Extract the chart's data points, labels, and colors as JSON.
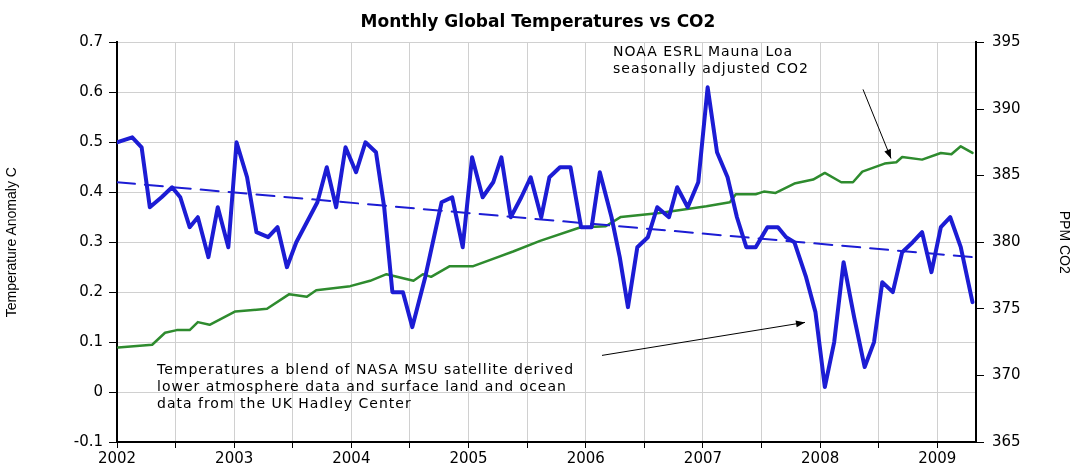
{
  "chart_data": {
    "type": "line",
    "title": "Monthly Global Temperatures vs CO2",
    "ylabel": "Temperature Anomaly C",
    "y2label": "PPM CO2",
    "xlim": [
      2002,
      2009.33
    ],
    "xticks": [
      2002,
      {
        "value": 2002.5,
        "label": null
      },
      2003,
      {
        "value": 2003.5,
        "label": null
      },
      2004,
      {
        "value": 2004.5,
        "label": null
      },
      2005,
      {
        "value": 2005.5,
        "label": null
      },
      2006,
      {
        "value": 2006.5,
        "label": null
      },
      2007,
      {
        "value": 2007.5,
        "label": null
      },
      2008,
      {
        "value": 2008.5,
        "label": null
      },
      2009
    ],
    "ylim": [
      -0.1,
      0.7
    ],
    "yticks": [
      -0.1,
      0,
      0.1,
      0.2,
      0.3,
      0.4,
      0.5,
      0.6,
      0.7
    ],
    "y2lim": [
      365,
      395
    ],
    "y2ticks": [
      365,
      370,
      375,
      380,
      385,
      390,
      395
    ],
    "grid": true,
    "marker": "none",
    "series": [
      {
        "color": "#1c1cd4",
        "x": [
          2002.0,
          2002.13,
          2002.21,
          2002.28,
          2002.38,
          2002.47,
          2002.54,
          2002.62,
          2002.69,
          2002.78,
          2002.86,
          2002.95,
          2003.02,
          2003.11,
          2003.19,
          2003.29,
          2003.37,
          2003.45,
          2003.53,
          2003.62,
          2003.71,
          2003.79,
          2003.87,
          2003.95,
          2004.04,
          2004.12,
          2004.21,
          2004.28,
          2004.35,
          2004.44,
          2004.52,
          2004.63,
          2004.77,
          2004.86,
          2004.95,
          2005.03,
          2005.12,
          2005.21,
          2005.28,
          2005.36,
          2005.45,
          2005.53,
          2005.62,
          2005.69,
          2005.78,
          2005.87,
          2005.96,
          2006.05,
          2006.12,
          2006.22,
          2006.29,
          2006.36,
          2006.44,
          2006.53,
          2006.61,
          2006.71,
          2006.78,
          2006.87,
          2006.96,
          2007.04,
          2007.12,
          2007.21,
          2007.29,
          2007.37,
          2007.45,
          2007.55,
          2007.64,
          2007.71,
          2007.78,
          2007.88,
          2007.96,
          2008.04,
          2008.12,
          2008.2,
          2008.29,
          2008.38,
          2008.46,
          2008.53,
          2008.62,
          2008.7,
          2008.79,
          2008.87,
          2008.95,
          2009.03,
          2009.11,
          2009.2,
          2009.3
        ],
        "values": [
          0.5,
          0.51,
          0.49,
          0.37,
          0.39,
          0.41,
          0.39,
          0.33,
          0.35,
          0.27,
          0.37,
          0.29,
          0.5,
          0.43,
          0.32,
          0.31,
          0.33,
          0.25,
          0.3,
          0.34,
          0.38,
          0.45,
          0.37,
          0.49,
          0.44,
          0.5,
          0.48,
          0.37,
          0.2,
          0.2,
          0.13,
          0.23,
          0.38,
          0.39,
          0.29,
          0.47,
          0.39,
          0.42,
          0.47,
          0.35,
          0.39,
          0.43,
          0.35,
          0.43,
          0.45,
          0.45,
          0.33,
          0.33,
          0.44,
          0.35,
          0.27,
          0.17,
          0.29,
          0.31,
          0.37,
          0.35,
          0.41,
          0.37,
          0.42,
          0.61,
          0.48,
          0.43,
          0.35,
          0.29,
          0.29,
          0.33,
          0.33,
          0.31,
          0.3,
          0.23,
          0.16,
          0.01,
          0.1,
          0.26,
          0.15,
          0.05,
          0.1,
          0.22,
          0.2,
          0.28,
          0.3,
          0.32,
          0.24,
          0.33,
          0.35,
          0.29,
          0.18
        ]
      },
      {
        "color": "#1c1cd4",
        "line_style": "dashed",
        "x": [
          2002.0,
          2009.3
        ],
        "values": [
          0.42,
          0.27
        ]
      },
      {
        "color": "#2e8b2e",
        "axis": "y2",
        "x": [
          2002.01,
          2002.3,
          2002.41,
          2002.51,
          2002.62,
          2002.69,
          2002.79,
          2003.01,
          2003.28,
          2003.47,
          2003.62,
          2003.7,
          2003.99,
          2004.16,
          2004.3,
          2004.53,
          2004.61,
          2004.68,
          2004.84,
          2005.04,
          2005.38,
          2005.61,
          2005.95,
          2006.17,
          2006.3,
          2006.63,
          2007.03,
          2007.23,
          2007.28,
          2007.45,
          2007.52,
          2007.62,
          2007.78,
          2007.94,
          2008.04,
          2008.18,
          2008.28,
          2008.36,
          2008.55,
          2008.65,
          2008.7,
          2008.87,
          2009.03,
          2009.12,
          2009.2,
          2009.3
        ],
        "values": [
          372.1,
          372.3,
          373.2,
          373.4,
          373.4,
          374.0,
          373.8,
          374.8,
          375.0,
          376.1,
          375.9,
          376.4,
          376.7,
          377.1,
          377.6,
          377.1,
          377.6,
          377.4,
          378.2,
          378.2,
          379.3,
          380.1,
          381.1,
          381.2,
          381.9,
          382.2,
          382.7,
          383.0,
          383.6,
          383.6,
          383.8,
          383.7,
          384.4,
          384.7,
          385.2,
          384.5,
          384.5,
          385.3,
          385.9,
          386.0,
          386.4,
          386.2,
          386.7,
          386.6,
          387.2,
          386.7
        ]
      }
    ],
    "annotations": [
      "NOAA ESRL Mauna Loa seasonally adjusted CO2",
      "Temperatures a blend of NASA MSU satellite derived lower atmosphere data and surface land and ocean data from the UK Hadley Center"
    ]
  }
}
